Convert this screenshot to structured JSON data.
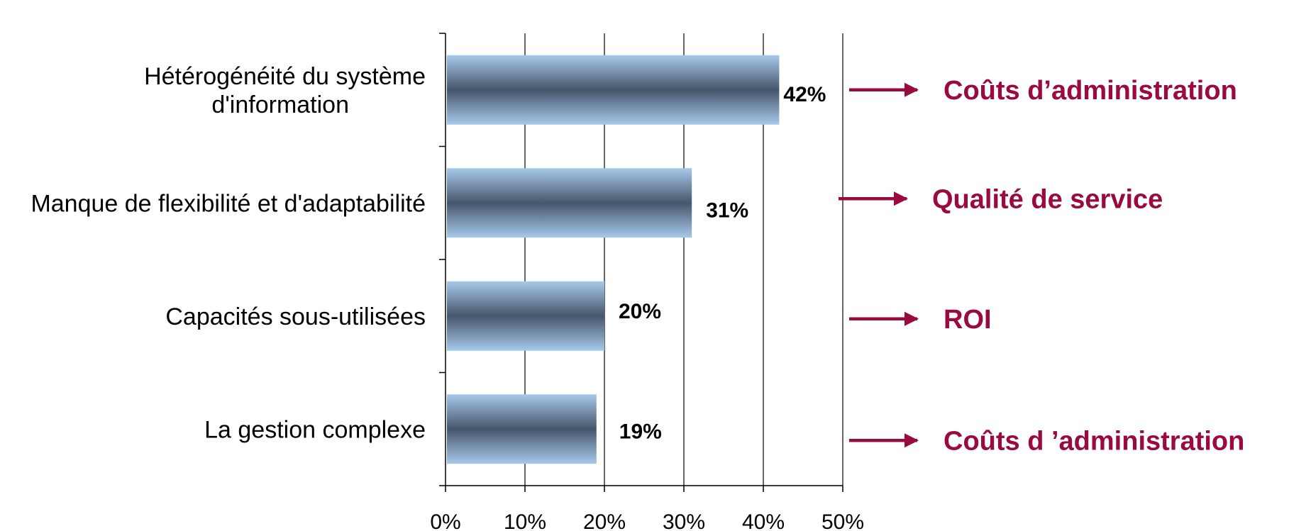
{
  "chart_data": {
    "type": "bar",
    "orientation": "horizontal",
    "categories": [
      [
        "Hétérogénéité du système",
        "d'information"
      ],
      [
        "Manque de flexibilité et d'adaptabilité"
      ],
      [
        "Capacités sous-utilisées"
      ],
      [
        "La gestion complexe"
      ]
    ],
    "values": [
      42,
      31,
      20,
      19
    ],
    "value_labels": [
      "42%",
      "31%",
      "20%",
      "19%"
    ],
    "xlim": [
      0,
      50
    ],
    "x_ticks": [
      "0%",
      "10%",
      "20%",
      "30%",
      "40%",
      "50%"
    ],
    "grid": true,
    "title": "",
    "xlabel": "",
    "ylabel": "",
    "annotations": [
      "Coûts d’administration",
      "Qualité de service",
      "ROI",
      "Coûts d ’administration"
    ]
  },
  "colors": {
    "bar_edge": "#a7c9ec",
    "bar_center": "#46566a",
    "annotation": "#9b0a3e",
    "grid": "#000000"
  }
}
